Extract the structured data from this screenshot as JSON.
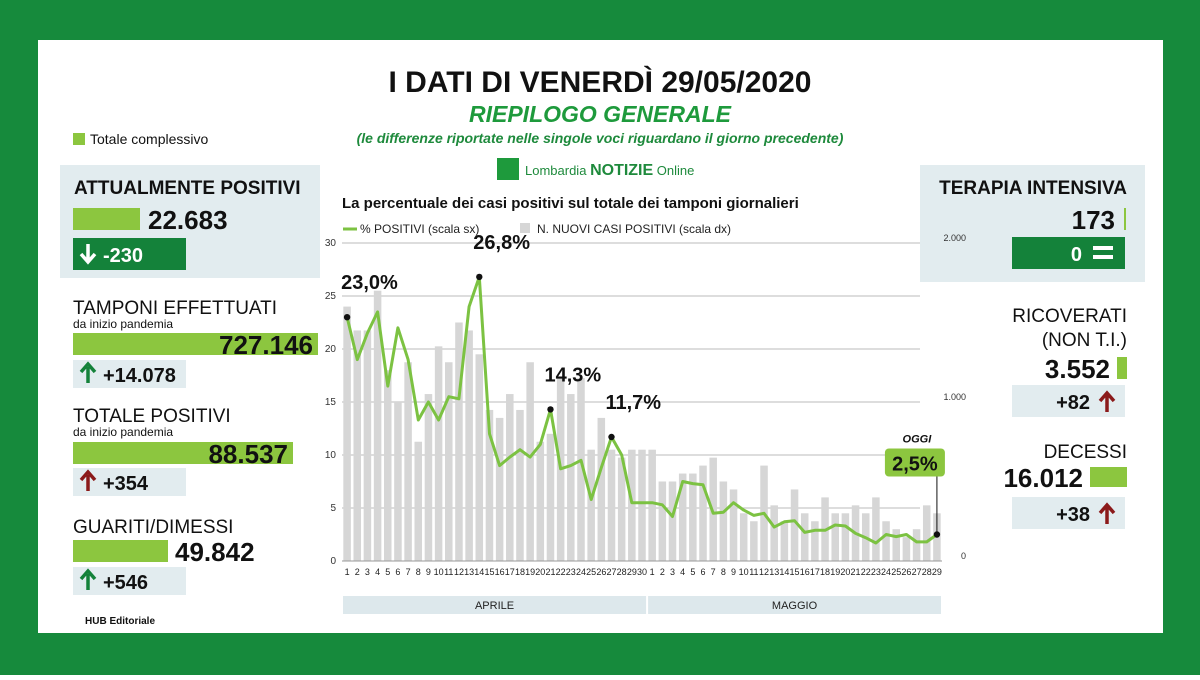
{
  "header": {
    "title": "I DATI DI VENERDÌ 29/05/2020",
    "subtitle": "RIEPILOGO GENERALE",
    "note": "(le differenze riportate nelle singole voci riguardano il giorno precedente)"
  },
  "logo": [
    "Lombardia",
    "NOTIZIE",
    "Online"
  ],
  "legend_total": "Totale complessivo",
  "left": [
    {
      "title": "ATTUALMENTE POSITIVI",
      "value": "22.683",
      "change": "-230"
    },
    {
      "title": "TAMPONI EFFETTUATI",
      "subtitle": "da inizio pandemia",
      "value": "727.146",
      "change": "+14.078"
    },
    {
      "title": "TOTALE POSITIVI",
      "subtitle": "da inizio pandemia",
      "value": "88.537",
      "change": "+354"
    },
    {
      "title": "GUARITI/DIMESSI",
      "value": "49.842",
      "change": "+546"
    }
  ],
  "right": [
    {
      "title": "TERAPIA INTENSIVA",
      "value": "173",
      "change": "0"
    },
    {
      "title": [
        "RICOVERATI",
        "(NON T.I.)"
      ],
      "value": "3.552",
      "change": "+82"
    },
    {
      "title": "DECESSI",
      "value": "16.012",
      "change": "+38"
    }
  ],
  "footer": "HUB Editoriale",
  "chart_data": {
    "type": "combo",
    "title": "La percentuale dei casi positivi sul totale dei tamponi giornalieri",
    "categories": [
      "1",
      "2",
      "3",
      "4",
      "5",
      "6",
      "7",
      "8",
      "9",
      "10",
      "11",
      "12",
      "13",
      "14",
      "15",
      "16",
      "17",
      "18",
      "19",
      "20",
      "21",
      "22",
      "23",
      "24",
      "25",
      "26",
      "27",
      "28",
      "29",
      "30",
      "1",
      "2",
      "3",
      "4",
      "5",
      "6",
      "7",
      "8",
      "9",
      "10",
      "11",
      "12",
      "13",
      "14",
      "15",
      "16",
      "17",
      "18",
      "19",
      "20",
      "21",
      "22",
      "23",
      "24",
      "25",
      "26",
      "27",
      "28",
      "29"
    ],
    "month_labels": [
      "APRILE",
      "MAGGIO"
    ],
    "annotation": "OGGI",
    "series": [
      {
        "name": "% POSITIVI (scala sx)",
        "type": "line",
        "color": "#7cc242",
        "values": [
          23.0,
          19,
          21.5,
          23.5,
          16.5,
          22,
          19,
          13.3,
          15,
          13.3,
          15.5,
          15.3,
          24,
          26.8,
          12,
          9,
          9.8,
          10.5,
          9.8,
          11,
          14.3,
          8.7,
          9,
          9.5,
          5.8,
          8.8,
          11.7,
          10,
          5.5,
          5.5,
          5.5,
          5.3,
          4.2,
          7.5,
          7.3,
          7.2,
          4.5,
          4.6,
          5.5,
          4.8,
          4.3,
          4.5,
          3.2,
          3.7,
          3.8,
          2.7,
          2.9,
          2.9,
          3.4,
          3.3,
          2.6,
          2.2,
          1.7,
          2.5,
          2.3,
          2.5,
          1.8,
          1.8,
          2.5
        ],
        "value_labels": [
          "23,0%",
          null,
          null,
          null,
          null,
          null,
          null,
          null,
          null,
          null,
          null,
          null,
          null,
          "26,8%",
          null,
          null,
          null,
          null,
          null,
          null,
          "14,3%",
          null,
          null,
          null,
          null,
          null,
          "11,7%",
          null,
          null,
          null,
          null,
          null,
          null,
          null,
          null,
          null,
          null,
          null,
          null,
          null,
          null,
          null,
          null,
          null,
          null,
          null,
          null,
          null,
          null,
          null,
          null,
          null,
          null,
          null,
          null,
          null,
          null,
          null,
          "2,5%"
        ]
      },
      {
        "name": "N. NUOVI CASI POSITIVI (scala dx)",
        "type": "bar",
        "axis": "y2",
        "color": "#d6d6d6",
        "values": [
          1600,
          1450,
          1450,
          1700,
          1200,
          1000,
          1250,
          750,
          1050,
          1350,
          1250,
          1500,
          1450,
          1300,
          950,
          900,
          1050,
          950,
          1250,
          750,
          800,
          1150,
          1050,
          1150,
          700,
          900,
          700,
          650,
          700,
          700,
          700,
          500,
          500,
          550,
          550,
          600,
          650,
          500,
          450,
          300,
          250,
          600,
          350,
          250,
          450,
          300,
          250,
          400,
          300,
          300,
          350,
          300,
          400,
          250,
          200,
          150,
          200,
          350,
          300
        ]
      }
    ],
    "ylim": [
      0,
      30
    ],
    "yticks": [
      0,
      5,
      10,
      15,
      20,
      25,
      30
    ],
    "y2lim": [
      0,
      2000
    ],
    "y2ticks": [
      0,
      {
        "value": 1000,
        "label": "1.000"
      },
      {
        "value": 2000,
        "label": "2.000"
      }
    ],
    "grid": true
  }
}
